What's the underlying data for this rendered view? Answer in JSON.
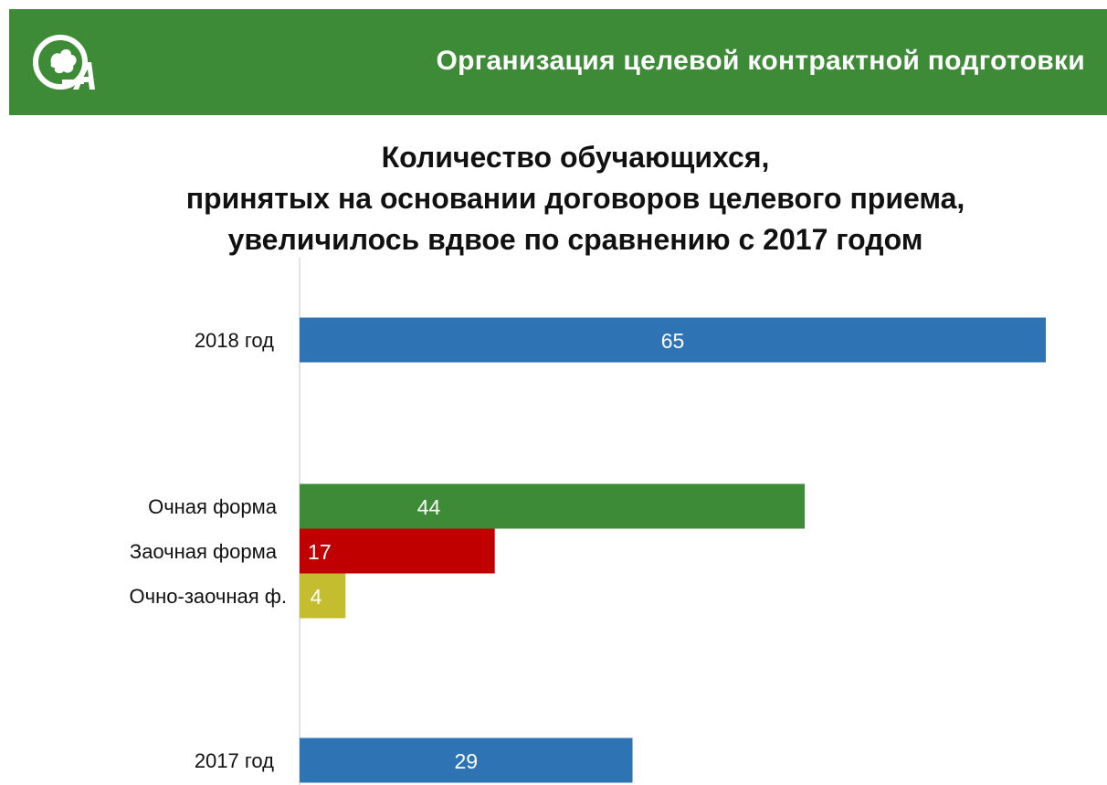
{
  "header": {
    "title": "Организация целевой контрактной подготовки"
  },
  "colors": {
    "header_bg": "#3d8b37",
    "bar_blue": "#2e74b5",
    "bar_green": "#3d8b37",
    "bar_red": "#c00000",
    "bar_yellow": "#c4bd30"
  },
  "chart_data": {
    "type": "bar",
    "orientation": "horizontal",
    "title_lines": [
      "Количество обучающихся,",
      "принятых на основании договоров целевого приема,",
      "увеличилось вдвое по сравнению с 2017 годом"
    ],
    "categories": [
      "2018 год",
      "Очная форма",
      "Заочная форма",
      "Очно-заочная ф.",
      "2017 год"
    ],
    "values": [
      65,
      44,
      17,
      4,
      29
    ],
    "bar_colors": [
      "#2e74b5",
      "#3d8b37",
      "#c00000",
      "#c4bd30",
      "#2e74b5"
    ],
    "xlim": [
      0,
      65
    ],
    "grid": false,
    "legend": "none"
  }
}
